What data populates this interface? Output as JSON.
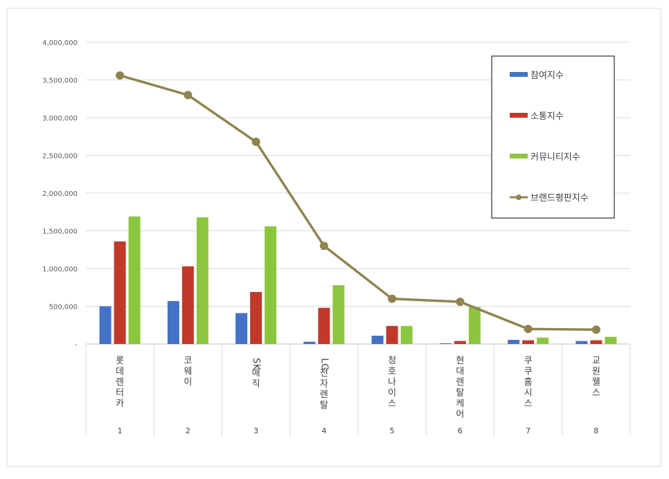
{
  "chart_data": {
    "type": "bar",
    "categories": [
      {
        "name": "롯데렌터카",
        "num": "1"
      },
      {
        "name": "코웨이",
        "num": "2"
      },
      {
        "name": "SK매직",
        "num": "3"
      },
      {
        "name": "LG전자렌탈",
        "num": "4"
      },
      {
        "name": "청호나이스",
        "num": "5"
      },
      {
        "name": "현대렌탈케어",
        "num": "6"
      },
      {
        "name": "쿠쿠홈시스",
        "num": "7"
      },
      {
        "name": "교원웰스",
        "num": "8"
      }
    ],
    "series": [
      {
        "name": "참여지수",
        "kind": "bar",
        "color": "#4472C4",
        "values": [
          500000,
          570000,
          410000,
          30000,
          110000,
          10000,
          55000,
          40000
        ]
      },
      {
        "name": "소통지수",
        "kind": "bar",
        "color": "#C0392B",
        "values": [
          1360000,
          1030000,
          690000,
          480000,
          240000,
          40000,
          50000,
          50000
        ]
      },
      {
        "name": "커뮤니티지수",
        "kind": "bar",
        "color": "#8CC63E",
        "values": [
          1690000,
          1680000,
          1560000,
          780000,
          240000,
          490000,
          85000,
          95000
        ]
      },
      {
        "name": "브랜드평판지수",
        "kind": "line",
        "color": "#8F8350",
        "values": [
          3560000,
          3300000,
          2680000,
          1300000,
          600000,
          560000,
          200000,
          190000
        ]
      }
    ],
    "yaxis": {
      "min": 0,
      "max": 4000000,
      "step": 500000,
      "tick_labels": [
        "-",
        "500,000",
        "1,000,000",
        "1,500,000",
        "2,000,000",
        "2,500,000",
        "3,000,000",
        "3,500,000",
        "4,000,000"
      ]
    },
    "grid": true,
    "legend_position": "top-right"
  }
}
